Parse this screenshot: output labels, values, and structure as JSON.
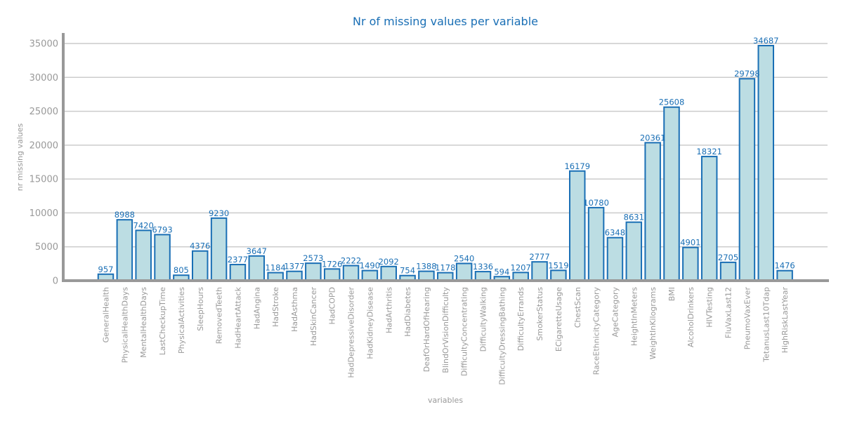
{
  "chart_data": {
    "type": "bar",
    "title": "Nr of missing values per variable",
    "xlabel": "variables",
    "ylabel": "nr missing values",
    "ylim": [
      0,
      36500
    ],
    "yticks": [
      0,
      5000,
      10000,
      15000,
      20000,
      25000,
      30000,
      35000
    ],
    "grid": true,
    "categories": [
      "GeneralHealth",
      "PhysicalHealthDays",
      "MentalHealthDays",
      "LastCheckupTime",
      "PhysicalActivities",
      "SleepHours",
      "RemovedTeeth",
      "HadHeartAttack",
      "HadAngina",
      "HadStroke",
      "HadAsthma",
      "HadSkinCancer",
      "HadCOPD",
      "HadDepressiveDisorder",
      "HadKidneyDisease",
      "HadArthritis",
      "HadDiabetes",
      "DeafOrHardOfHearing",
      "BlindOrVisionDifficulty",
      "DifficultyConcentrating",
      "DifficultyWalking",
      "DifficultyDressingBathing",
      "DifficultyErrands",
      "SmokerStatus",
      "ECigaretteUsage",
      "ChestScan",
      "RaceEthnicityCategory",
      "AgeCategory",
      "HeightInMeters",
      "WeightInKilograms",
      "BMI",
      "AlcoholDrinkers",
      "HIVTesting",
      "FluVaxLast12",
      "PneumoVaxEver",
      "TetanusLast10Tdap",
      "HighRiskLastYear"
    ],
    "values": [
      957,
      8988,
      7420,
      6793,
      805,
      4376,
      9230,
      2377,
      3647,
      1184,
      1377,
      2573,
      1726,
      2222,
      1490,
      2092,
      754,
      1388,
      1178,
      2540,
      1336,
      594,
      1207,
      2777,
      1519,
      16179,
      10780,
      6348,
      8631,
      20361,
      25608,
      4901,
      18321,
      2705,
      29798,
      34687,
      1476
    ],
    "colors": {
      "bar_fill": "#bcdde3",
      "bar_edge": "#1a6fb5",
      "text_accent": "#1a6fb5",
      "axis": "#999999",
      "grid": "#cccccc"
    }
  }
}
